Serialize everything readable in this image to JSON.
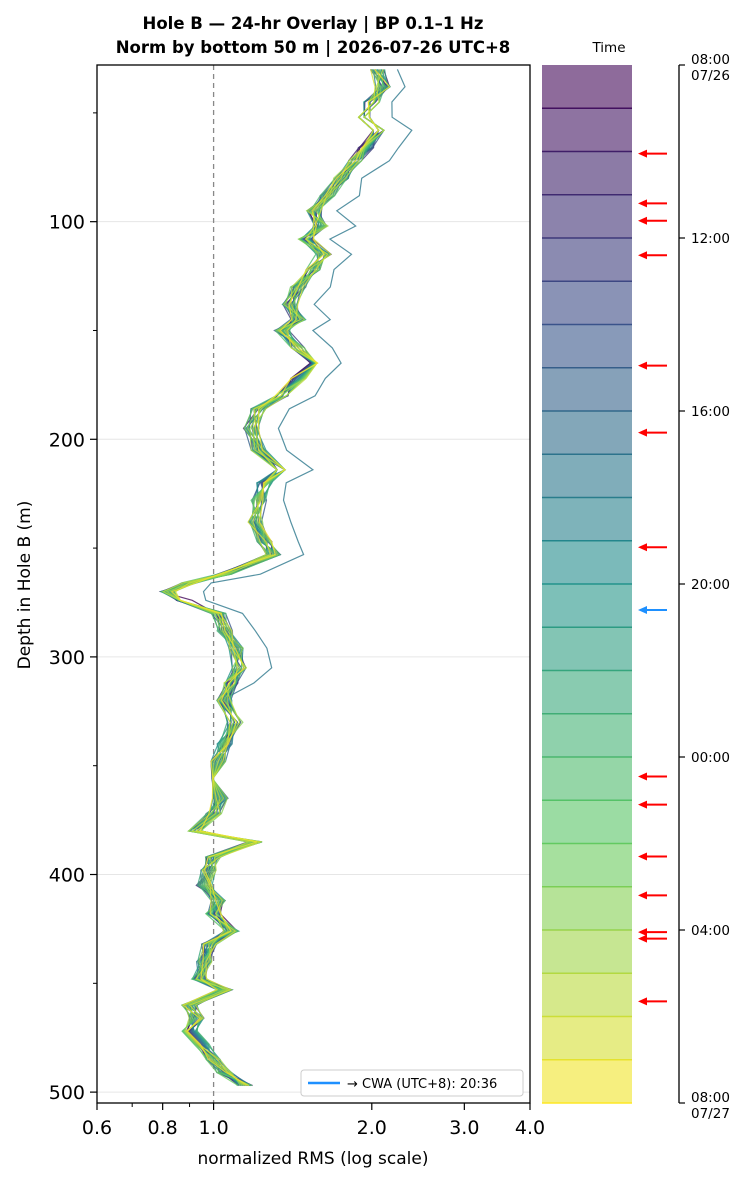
{
  "chart_data": {
    "type": "line",
    "title_line1": "Hole B — 24-hr Overlay  |  BP 0.1–1 Hz",
    "title_line2": "Norm by bottom 50 m  |  2026-07-26 UTC+8",
    "xlabel": "normalized RMS  (log scale)",
    "ylabel": "Depth in Hole B (m)",
    "x_scale": "log",
    "xlim": [
      0.6,
      4.0
    ],
    "ylim": [
      505,
      28
    ],
    "x_ticks": [
      {
        "value": 0.6,
        "label": "0.6"
      },
      {
        "value": 0.8,
        "label": "0.8"
      },
      {
        "value": 1.0,
        "label": "1.0"
      },
      {
        "value": 2.0,
        "label": "2.0"
      },
      {
        "value": 3.0,
        "label": "3.0"
      },
      {
        "value": 4.0,
        "label": "4.0"
      }
    ],
    "y_ticks": [
      {
        "value": 100,
        "label": "100"
      },
      {
        "value": 200,
        "label": "200"
      },
      {
        "value": 300,
        "label": "300"
      },
      {
        "value": 400,
        "label": "400"
      },
      {
        "value": 500,
        "label": "500"
      }
    ],
    "reference_line_x": 1.0,
    "grid": true,
    "legend": {
      "placement": "bottom-right",
      "label": "→ CWA (UTC+8): 20:36",
      "color": "#1e90ff"
    },
    "base_profile": [
      [
        30,
        2.05
      ],
      [
        38,
        2.1
      ],
      [
        45,
        2.0
      ],
      [
        52,
        1.95
      ],
      [
        58,
        2.05
      ],
      [
        66,
        1.95
      ],
      [
        72,
        1.85
      ],
      [
        80,
        1.75
      ],
      [
        88,
        1.65
      ],
      [
        95,
        1.55
      ],
      [
        102,
        1.6
      ],
      [
        108,
        1.5
      ],
      [
        115,
        1.62
      ],
      [
        122,
        1.55
      ],
      [
        130,
        1.45
      ],
      [
        138,
        1.4
      ],
      [
        145,
        1.45
      ],
      [
        150,
        1.35
      ],
      [
        158,
        1.45
      ],
      [
        165,
        1.55
      ],
      [
        172,
        1.45
      ],
      [
        180,
        1.35
      ],
      [
        186,
        1.22
      ],
      [
        195,
        1.18
      ],
      [
        205,
        1.22
      ],
      [
        214,
        1.35
      ],
      [
        220,
        1.25
      ],
      [
        228,
        1.22
      ],
      [
        238,
        1.2
      ],
      [
        247,
        1.25
      ],
      [
        253,
        1.3
      ],
      [
        262,
        1.05
      ],
      [
        266,
        0.9
      ],
      [
        270,
        0.82
      ],
      [
        274,
        0.88
      ],
      [
        280,
        1.02
      ],
      [
        288,
        1.05
      ],
      [
        296,
        1.1
      ],
      [
        305,
        1.12
      ],
      [
        312,
        1.08
      ],
      [
        320,
        1.05
      ],
      [
        330,
        1.1
      ],
      [
        340,
        1.05
      ],
      [
        348,
        1.02
      ],
      [
        356,
        1.0
      ],
      [
        365,
        1.03
      ],
      [
        372,
        1.0
      ],
      [
        380,
        0.92
      ],
      [
        385,
        1.2
      ],
      [
        392,
        1.0
      ],
      [
        398,
        0.98
      ],
      [
        405,
        0.96
      ],
      [
        412,
        1.02
      ],
      [
        418,
        1.0
      ],
      [
        426,
        1.08
      ],
      [
        432,
        0.98
      ],
      [
        440,
        0.96
      ],
      [
        448,
        0.94
      ],
      [
        453,
        1.05
      ],
      [
        460,
        0.9
      ],
      [
        466,
        0.93
      ],
      [
        472,
        0.9
      ],
      [
        478,
        0.95
      ],
      [
        485,
        1.0
      ],
      [
        491,
        1.05
      ],
      [
        497,
        1.15
      ]
    ],
    "series": [
      {
        "t": 0.5
      },
      {
        "t": 1.5
      },
      {
        "t": 2.5
      },
      {
        "t": 3.5
      },
      {
        "t": 4.5
      },
      {
        "t": 5.5
      },
      {
        "t": 6.5
      },
      {
        "t": 7.5
      },
      {
        "t": 8.5
      },
      {
        "t": 9.5
      },
      {
        "t": 10.5
      },
      {
        "t": 11.5
      },
      {
        "t": 12.5
      },
      {
        "t": 13.5
      },
      {
        "t": 14.5
      },
      {
        "t": 15.5
      },
      {
        "t": 16.5
      },
      {
        "t": 17.5
      },
      {
        "t": 18.5
      },
      {
        "t": 19.5
      },
      {
        "t": 20.5
      },
      {
        "t": 21.5
      },
      {
        "t": 22.5
      },
      {
        "t": 23.5
      }
    ],
    "colorbar": {
      "label": "Time",
      "hours_span": 24,
      "bins": 24,
      "ticks": [
        {
          "hour": 0,
          "label": "08:00",
          "sublabel": "07/26"
        },
        {
          "hour": 4,
          "label": "12:00",
          "sublabel": ""
        },
        {
          "hour": 8,
          "label": "16:00",
          "sublabel": ""
        },
        {
          "hour": 12,
          "label": "20:00",
          "sublabel": ""
        },
        {
          "hour": 16,
          "label": "00:00",
          "sublabel": ""
        },
        {
          "hour": 20,
          "label": "04:00",
          "sublabel": ""
        },
        {
          "hour": 24,
          "label": "08:00",
          "sublabel": "07/27"
        }
      ],
      "event_arrows_hours": [
        2.05,
        3.2,
        3.6,
        4.4,
        6.95,
        8.5,
        11.15,
        16.45,
        17.1,
        18.3,
        19.2,
        20.05,
        20.2,
        21.65
      ],
      "highlight_arrow_hour": 12.6,
      "event_color": "#ff0000",
      "highlight_color": "#1e90ff"
    },
    "colormap": [
      "#440154",
      "#3b528b",
      "#21918c",
      "#5ec962",
      "#fde725"
    ]
  }
}
